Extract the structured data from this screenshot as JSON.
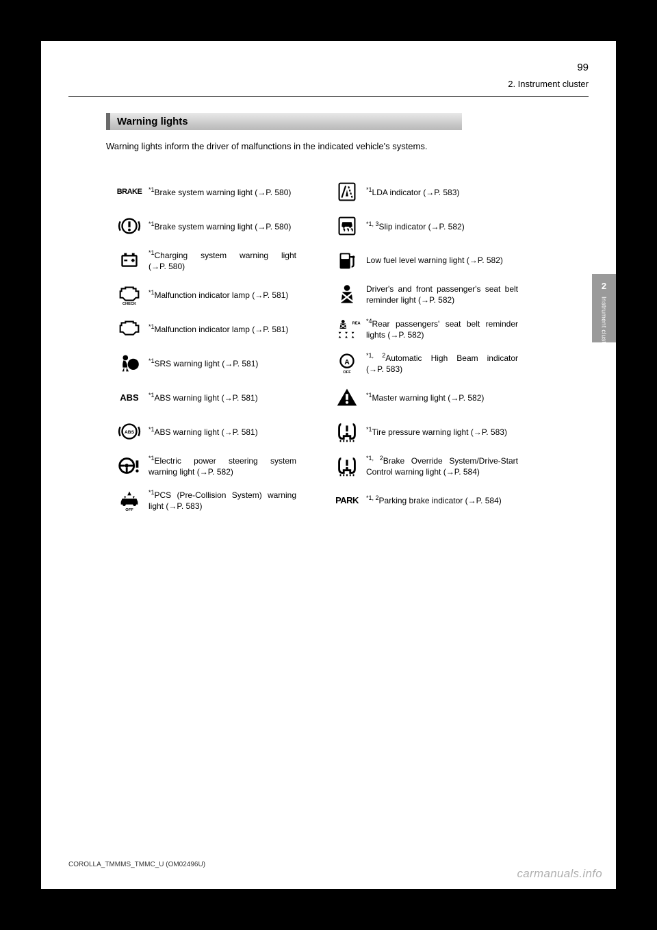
{
  "page": {
    "number": "99",
    "section_label": "2. Instrument cluster",
    "footer_code": "COROLLA_TMMMS_TMMC_U (OM02496U)",
    "footer_brand": "carmanuals.info"
  },
  "side_tab": {
    "num": "2",
    "text": "Instrument cluster"
  },
  "heading": "Warning lights",
  "intro": "Warning lights inform the driver of malfunctions in the indicated vehicle's systems.",
  "arrow": "→",
  "rows": [
    {
      "left": {
        "sup": "*1",
        "text": "Brake system warning light",
        "ref": "P. 580",
        "icon": "brake_text"
      },
      "right": {
        "sup": "*1",
        "text": "LDA indicator",
        "ref": "P. 583",
        "icon": "lda"
      }
    },
    {
      "left": {
        "sup": "*1",
        "text": "Brake system warning light",
        "ref": "P. 580",
        "icon": "brake_circle"
      },
      "right": {
        "sup": "*1, 3",
        "text": "Slip indicator",
        "ref": "P. 582",
        "icon": "slip"
      }
    },
    {
      "left": {
        "sup": "*1",
        "text": "Charging system warning light",
        "ref": "P. 580",
        "icon": "charge"
      },
      "right": {
        "sup": "",
        "text": "Low fuel level warning light",
        "ref": "P. 582",
        "icon": "fuel"
      }
    },
    {
      "left": {
        "sup": "*1",
        "text": "Malfunction indicator lamp",
        "ref": "P. 581",
        "icon": "check_engine"
      },
      "right": {
        "sup": "",
        "text": "Driver's and front passenger's seat belt reminder light",
        "ref": "P. 582",
        "icon": "seatbelt"
      }
    },
    {
      "left": {
        "sup": "*1",
        "text": "Malfunction indicator lamp",
        "ref": "P. 581",
        "icon": "engine"
      },
      "right": {
        "sup": "*4",
        "text": "Rear passengers' seat belt reminder lights",
        "ref": "P. 582",
        "icon": "rear_belt"
      }
    },
    {
      "left": {
        "sup": "*1",
        "text": "SRS warning light",
        "ref": "P. 581",
        "icon": "srs"
      },
      "right": {
        "sup": "*1, 2",
        "text": "Automatic High Beam indicator",
        "ref": "P. 583",
        "icon": "ahb"
      }
    },
    {
      "left": {
        "sup": "*1",
        "text": "ABS warning light",
        "ref": "P. 581",
        "icon": "abs_text"
      },
      "right": {
        "sup": "*1",
        "text": "Master warning light",
        "ref": "P. 582",
        "icon": "master"
      }
    },
    {
      "left": {
        "sup": "*1",
        "text": "ABS warning light",
        "ref": "P. 581",
        "icon": "abs_circle"
      },
      "right": {
        "sup": "*1",
        "text": "Tire pressure warning light",
        "ref": "P. 583",
        "icon": "tire"
      }
    },
    {
      "left": {
        "sup": "*1",
        "text": "Electric power steering system warning light",
        "ref": "P. 582",
        "icon": "eps"
      },
      "right": {
        "sup": "*1, 2",
        "text": "Brake Override System/Drive-Start Control warning light",
        "ref": "P. 584",
        "icon": "tire"
      }
    },
    {
      "left": {
        "sup": "*1",
        "text": "PCS (Pre-Collision System) warning light",
        "ref": "P. 583",
        "icon": "pcs"
      },
      "right": {
        "sup": "*1, 2",
        "text": "Parking brake indicator",
        "ref": "P. 584",
        "icon": "park"
      }
    }
  ],
  "icon_label": {
    "brake_text": "BRAKE",
    "abs_text": "ABS",
    "park": "PARK",
    "rear": "REAR",
    "check": "CHECK",
    "off": "OFF"
  }
}
